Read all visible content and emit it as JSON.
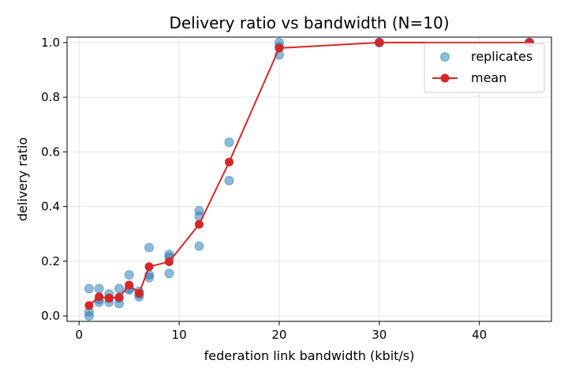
{
  "chart_data": {
    "type": "scatter",
    "title": "Delivery ratio vs bandwidth (N=10)",
    "xlabel": "federation link bandwidth (kbit/s)",
    "ylabel": "delivery ratio",
    "xlim": [
      -1.2,
      47.2
    ],
    "ylim": [
      -0.02,
      1.02
    ],
    "xticks": [
      0,
      10,
      20,
      30,
      40
    ],
    "yticks": [
      0.0,
      0.2,
      0.4,
      0.6,
      0.8,
      1.0
    ],
    "xtick_labels": [
      "0",
      "10",
      "20",
      "30",
      "40"
    ],
    "ytick_labels": [
      "0.0",
      "0.2",
      "0.4",
      "0.6",
      "0.8",
      "1.0"
    ],
    "grid": true,
    "legend_position": "upper right",
    "series": [
      {
        "name": "replicates",
        "kind": "scatter",
        "color": "#1f77b4",
        "points": [
          [
            1,
            0.0
          ],
          [
            1,
            0.015
          ],
          [
            1,
            0.1
          ],
          [
            2,
            0.05
          ],
          [
            2,
            0.06
          ],
          [
            2,
            0.1
          ],
          [
            3,
            0.05
          ],
          [
            3,
            0.065
          ],
          [
            3,
            0.08
          ],
          [
            4,
            0.045
          ],
          [
            4,
            0.065
          ],
          [
            4,
            0.1
          ],
          [
            5,
            0.095
          ],
          [
            5,
            0.1
          ],
          [
            5,
            0.15
          ],
          [
            6,
            0.07
          ],
          [
            6,
            0.08
          ],
          [
            6,
            0.09
          ],
          [
            7,
            0.14
          ],
          [
            7,
            0.15
          ],
          [
            7,
            0.25
          ],
          [
            9,
            0.155
          ],
          [
            9,
            0.215
          ],
          [
            9,
            0.225
          ],
          [
            12,
            0.255
          ],
          [
            12,
            0.365
          ],
          [
            12,
            0.385
          ],
          [
            15,
            0.495
          ],
          [
            15,
            0.635
          ],
          [
            20,
            0.955
          ],
          [
            20,
            0.985
          ],
          [
            20,
            1.0
          ],
          [
            30,
            1.0
          ],
          [
            30,
            1.0
          ],
          [
            30,
            1.0
          ],
          [
            45,
            1.0
          ],
          [
            45,
            1.0
          ],
          [
            45,
            1.0
          ]
        ]
      },
      {
        "name": "mean",
        "kind": "line",
        "color": "#d62728",
        "x": [
          1,
          2,
          3,
          4,
          5,
          6,
          7,
          9,
          12,
          15,
          20,
          30,
          45
        ],
        "y": [
          0.038,
          0.07,
          0.065,
          0.068,
          0.113,
          0.083,
          0.18,
          0.198,
          0.335,
          0.563,
          0.98,
          1.0,
          1.0
        ]
      }
    ]
  }
}
